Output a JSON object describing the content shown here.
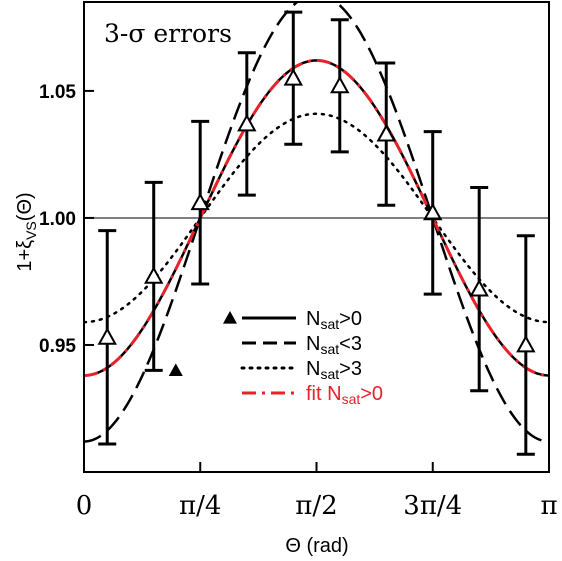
{
  "chart_data": {
    "type": "line",
    "xlabel": "Θ (rad)",
    "ylabel": "1+ξ",
    "ylabel_sub": "VS",
    "ylabel_suffix": "(Θ)",
    "annotation": "3-σ errors",
    "x_tick_labels": [
      "0",
      "π/4",
      "π/2",
      "3π/4",
      "π"
    ],
    "x_ticks": [
      0,
      0.7854,
      1.5708,
      2.3562,
      3.1416
    ],
    "y_tick_labels": [
      "0.95",
      "1.00",
      "1.05"
    ],
    "y_ticks": [
      0.95,
      1.0,
      1.05
    ],
    "xlim": [
      0,
      3.1416
    ],
    "ylim": [
      0.9,
      1.085
    ],
    "grid": false,
    "reference_line": 1.0,
    "legend_position": "lower-center",
    "data_points": {
      "name": "Nsat>0",
      "marker": "open-triangle",
      "x": [
        0.157,
        0.471,
        0.785,
        1.1,
        1.414,
        1.728,
        2.042,
        2.356,
        2.67,
        2.985
      ],
      "y": [
        0.953,
        0.977,
        1.006,
        1.037,
        1.055,
        1.052,
        1.033,
        1.002,
        0.972,
        0.95
      ],
      "yerr": [
        0.042,
        0.037,
        0.032,
        0.028,
        0.026,
        0.026,
        0.028,
        0.032,
        0.04,
        0.043
      ]
    },
    "extra_marker": {
      "x": 0.62,
      "y": 0.94
    },
    "series": [
      {
        "name": "Nsat>0",
        "style": "solid",
        "color": "#000000",
        "mean": 1.0,
        "amp": 0.062
      },
      {
        "name": "Nsat<3",
        "style": "dashed",
        "color": "#000000",
        "mean": 1.0,
        "amp": 0.088
      },
      {
        "name": "Nsat>3",
        "style": "dotted",
        "color": "#000000",
        "mean": 1.0,
        "amp": 0.041
      },
      {
        "name": "fit Nsat>0",
        "style": "dashdot",
        "color": "#e8212a",
        "mean": 1.0,
        "amp": 0.062
      }
    ],
    "legend": [
      {
        "marker": "filled-triangle",
        "main": "N",
        "sub": "sat",
        "rest": ">0",
        "color": "#000000"
      },
      {
        "marker": "dashed",
        "main": "N",
        "sub": "sat",
        "rest": "<3",
        "color": "#000000"
      },
      {
        "marker": "dotted",
        "main": "N",
        "sub": "sat",
        "rest": ">3",
        "color": "#000000"
      },
      {
        "marker": "dashdot",
        "main": "fit N",
        "sub": "sat",
        "rest": ">0",
        "color": "#e8212a"
      }
    ]
  }
}
